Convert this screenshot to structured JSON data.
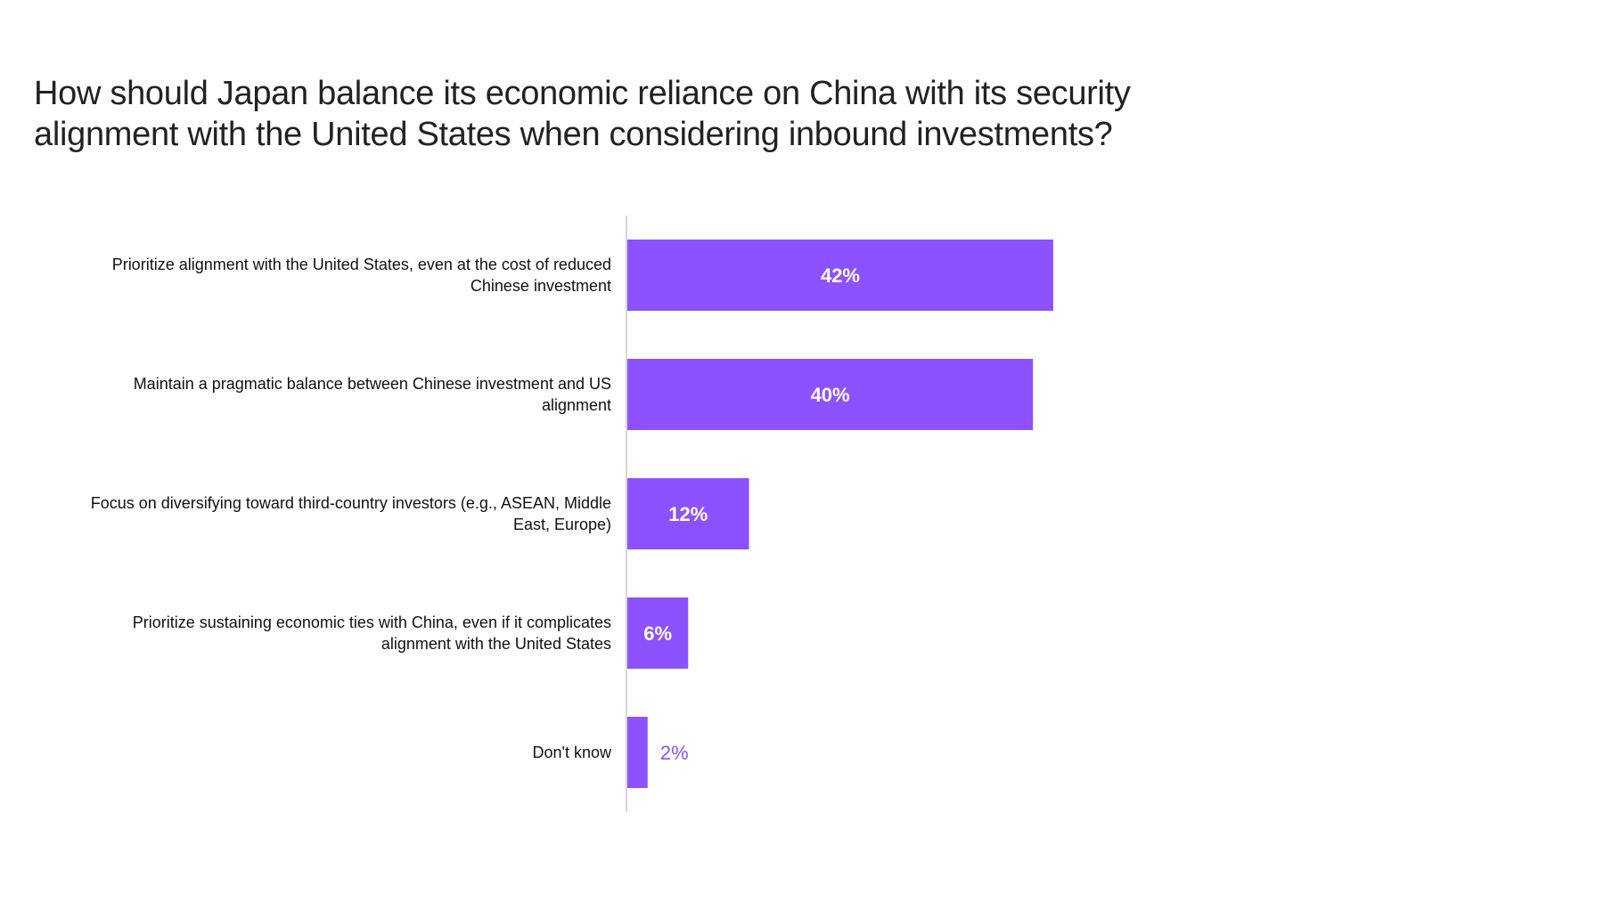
{
  "title_lines": [
    "How should Japan balance its economic reliance on China with its security",
    "alignment with the United States when considering inbound investments?"
  ],
  "colors": {
    "bar": "#8c52ff",
    "bar_label_inside": "#ffffff",
    "bar_label_outside": "#8c52ff",
    "axis": "#c8c8c8"
  },
  "chart_data": {
    "type": "bar",
    "orientation": "horizontal",
    "title": "How should Japan balance its economic reliance on China with its security alignment with the United States when considering inbound investments?",
    "categories": [
      "Prioritize alignment with the United States, even at the cost of reduced Chinese investment",
      "Maintain a pragmatic balance between Chinese investment and US alignment",
      "Focus on diversifying toward third-country investors (e.g., ASEAN, Middle East, Europe)",
      "Prioritize sustaining economic ties with China, even if it complicates alignment with the United States",
      "Don't know"
    ],
    "category_label_lines": [
      [
        "Prioritize alignment with the United States, even at the cost of reduced",
        "Chinese investment"
      ],
      [
        "Maintain a pragmatic balance between Chinese investment and US",
        "alignment"
      ],
      [
        "Focus on diversifying toward third-country investors (e.g., ASEAN, Middle",
        "East, Europe)"
      ],
      [
        "Prioritize sustaining economic ties with China, even if it complicates",
        "alignment with the United States"
      ],
      [
        "Don't know"
      ]
    ],
    "values": [
      42,
      40,
      12,
      6,
      2
    ],
    "data_labels": [
      "42%",
      "40%",
      "12%",
      "6%",
      "2%"
    ],
    "xlim": [
      0,
      100
    ],
    "xlabel": "",
    "ylabel": "",
    "grid": false,
    "legend": "none"
  }
}
